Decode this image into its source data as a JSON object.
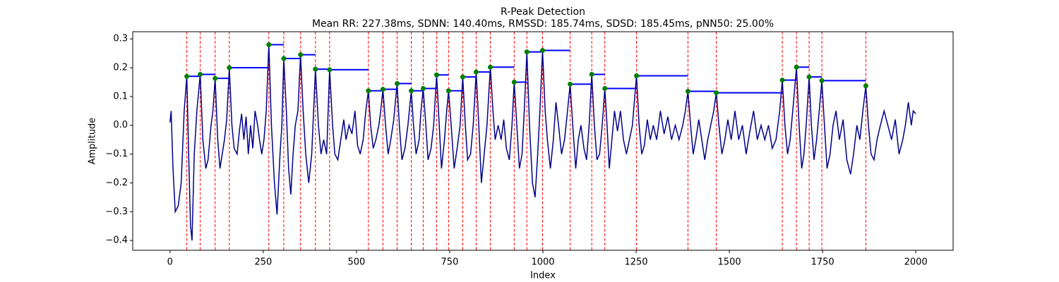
{
  "chart_data": {
    "type": "line",
    "title": "R-Peak Detection",
    "subtitle": "Mean RR: 227.38ms, SDNN: 140.40ms, RMSSD: 185.74ms, SDSD: 185.45ms, pNN50: 25.00%",
    "x_label": "Index",
    "y_label": "Amplitude",
    "xlim": [
      -100,
      2100
    ],
    "ylim": [
      -0.434,
      0.325
    ],
    "xticks": [
      0,
      250,
      500,
      750,
      1000,
      1250,
      1500,
      1750,
      2000
    ],
    "yticks": [
      {
        "value": -0.4,
        "label": "−0.4"
      },
      {
        "value": -0.3,
        "label": "−0.3"
      },
      {
        "value": -0.2,
        "label": "−0.2"
      },
      {
        "value": -0.1,
        "label": "−0.1"
      },
      {
        "value": 0,
        "label": "0.0"
      },
      0.1,
      0.2,
      0.3
    ],
    "color": "#00008b",
    "x": [
      0,
      3,
      8,
      14,
      22,
      30,
      38,
      45,
      50,
      55,
      59,
      65,
      72,
      81,
      88,
      96,
      102,
      110,
      115,
      121,
      128,
      134,
      140,
      146,
      152,
      159,
      166,
      172,
      180,
      186,
      192,
      198,
      204,
      210,
      216,
      222,
      228,
      235,
      240,
      246,
      252,
      258,
      265,
      272,
      280,
      287,
      295,
      300,
      305,
      312,
      318,
      324,
      330,
      336,
      343,
      350,
      357,
      364,
      372,
      380,
      390,
      398,
      405,
      412,
      420,
      428,
      436,
      442,
      450,
      458,
      466,
      472,
      480,
      488,
      496,
      503,
      510,
      518,
      525,
      532,
      538,
      545,
      552,
      560,
      565,
      571,
      578,
      585,
      592,
      600,
      609,
      615,
      622,
      630,
      638,
      647,
      653,
      660,
      668,
      673,
      679,
      686,
      692,
      700,
      707,
      715,
      722,
      728,
      736,
      742,
      747,
      754,
      762,
      770,
      778,
      785,
      792,
      798,
      806,
      813,
      821,
      828,
      835,
      841,
      850,
      859,
      866,
      872,
      880,
      888,
      895,
      902,
      910,
      917,
      923,
      930,
      937,
      944,
      950,
      957,
      964,
      972,
      979,
      986,
      992,
      999,
      1006,
      1012,
      1020,
      1028,
      1035,
      1042,
      1050,
      1058,
      1066,
      1073,
      1080,
      1088,
      1095,
      1102,
      1110,
      1117,
      1124,
      1131,
      1138,
      1145,
      1152,
      1159,
      1166,
      1172,
      1178,
      1185,
      1192,
      1200,
      1208,
      1216,
      1224,
      1232,
      1240,
      1251,
      1258,
      1265,
      1272,
      1280,
      1288,
      1296,
      1305,
      1315,
      1325,
      1335,
      1345,
      1355,
      1365,
      1375,
      1382,
      1389,
      1396,
      1403,
      1410,
      1418,
      1426,
      1434,
      1442,
      1450,
      1458,
      1465,
      1472,
      1480,
      1488,
      1496,
      1505,
      1515,
      1525,
      1535,
      1545,
      1555,
      1565,
      1575,
      1585,
      1595,
      1605,
      1615,
      1625,
      1635,
      1642,
      1649,
      1656,
      1663,
      1670,
      1680,
      1687,
      1694,
      1700,
      1706,
      1714,
      1720,
      1727,
      1734,
      1741,
      1748,
      1755,
      1762,
      1770,
      1778,
      1786,
      1795,
      1805,
      1815,
      1825,
      1833,
      1842,
      1850,
      1858,
      1866,
      1873,
      1880,
      1888,
      1896,
      1905,
      1915,
      1925,
      1935,
      1945,
      1955,
      1965,
      1972,
      1980,
      1988,
      1993,
      2000
    ],
    "values": [
      0.01,
      0.05,
      -0.15,
      -0.3,
      -0.28,
      -0.2,
      0.05,
      0.17,
      -0.1,
      -0.35,
      -0.4,
      -0.1,
      0.05,
      0.177,
      -0.05,
      -0.15,
      -0.12,
      0.0,
      0.05,
      0.163,
      -0.05,
      -0.15,
      -0.1,
      -0.05,
      0.02,
      0.2,
      0.0,
      -0.08,
      -0.1,
      -0.02,
      0.04,
      -0.05,
      0.03,
      -0.1,
      0.0,
      -0.08,
      0.05,
      0.0,
      -0.05,
      -0.1,
      -0.05,
      0.05,
      0.28,
      0.0,
      -0.2,
      -0.31,
      -0.1,
      0.0,
      0.232,
      0.05,
      -0.15,
      -0.24,
      -0.1,
      0.0,
      0.05,
      0.245,
      0.05,
      -0.1,
      -0.2,
      -0.1,
      0.195,
      0.0,
      -0.1,
      -0.05,
      -0.1,
      0.193,
      0.0,
      -0.1,
      -0.12,
      -0.05,
      0.02,
      -0.05,
      0.0,
      -0.03,
      0.05,
      -0.07,
      -0.1,
      -0.05,
      0.05,
      0.12,
      0.0,
      -0.08,
      -0.05,
      0.0,
      0.05,
      0.125,
      0.0,
      -0.1,
      -0.05,
      0.02,
      0.145,
      0.0,
      -0.12,
      -0.08,
      0.0,
      0.12,
      0.0,
      -0.1,
      -0.05,
      0.05,
      0.128,
      0.0,
      -0.12,
      -0.08,
      0.0,
      0.175,
      0.0,
      -0.15,
      -0.05,
      0.05,
      0.12,
      0.0,
      -0.15,
      -0.08,
      0.0,
      0.168,
      0.0,
      -0.12,
      -0.1,
      0.0,
      0.185,
      0.0,
      -0.2,
      -0.12,
      0.0,
      0.202,
      0.05,
      -0.05,
      0.0,
      -0.05,
      0.02,
      -0.08,
      -0.12,
      0.0,
      0.15,
      0.0,
      -0.15,
      -0.1,
      0.05,
      0.255,
      0.0,
      -0.2,
      -0.25,
      -0.1,
      0.05,
      0.26,
      0.05,
      -0.05,
      -0.15,
      -0.05,
      0.08,
      0.0,
      -0.1,
      -0.05,
      0.05,
      0.143,
      0.0,
      -0.15,
      -0.05,
      0.0,
      -0.08,
      -0.12,
      0.0,
      0.177,
      0.0,
      -0.12,
      -0.1,
      0.0,
      0.128,
      0.0,
      -0.15,
      -0.05,
      0.05,
      -0.02,
      0.05,
      -0.05,
      -0.1,
      -0.05,
      0.0,
      0.172,
      0.0,
      -0.1,
      -0.07,
      0.02,
      -0.05,
      0.0,
      -0.05,
      0.05,
      -0.03,
      0.03,
      -0.05,
      0.0,
      -0.05,
      0.0,
      0.05,
      0.118,
      0.0,
      -0.1,
      -0.05,
      0.02,
      -0.05,
      -0.12,
      -0.05,
      0.0,
      0.05,
      0.113,
      0.0,
      -0.1,
      -0.05,
      0.02,
      -0.05,
      0.05,
      -0.05,
      0.0,
      -0.1,
      -0.02,
      0.05,
      -0.05,
      0.0,
      -0.05,
      0.0,
      -0.08,
      -0.05,
      0.05,
      0.157,
      0.0,
      -0.1,
      -0.05,
      0.05,
      0.202,
      0.0,
      -0.15,
      -0.1,
      0.0,
      0.168,
      0.0,
      -0.12,
      -0.05,
      0.05,
      0.155,
      0.0,
      -0.15,
      -0.1,
      0.0,
      0.05,
      -0.05,
      0.02,
      -0.12,
      -0.17,
      -0.1,
      0.0,
      -0.05,
      0.05,
      0.137,
      0.0,
      -0.1,
      -0.12,
      -0.05,
      0.0,
      0.05,
      0.0,
      -0.05,
      0.02,
      -0.1,
      -0.05,
      0.0,
      0.08,
      0.0,
      0.05,
      0.04
    ],
    "peaks": {
      "marker_color": "#008000",
      "vline_color": "#ff0000",
      "interval_color": "#0000ff",
      "x": [
        45,
        81,
        121,
        159,
        265,
        305,
        350,
        390,
        428,
        532,
        571,
        609,
        647,
        679,
        715,
        747,
        785,
        821,
        859,
        923,
        957,
        999,
        1073,
        1131,
        1166,
        1251,
        1389,
        1465,
        1642,
        1680,
        1714,
        1748,
        1866
      ],
      "values": [
        0.17,
        0.177,
        0.163,
        0.2,
        0.28,
        0.232,
        0.245,
        0.195,
        0.193,
        0.12,
        0.125,
        0.145,
        0.12,
        0.128,
        0.175,
        0.12,
        0.168,
        0.185,
        0.202,
        0.15,
        0.255,
        0.26,
        0.143,
        0.177,
        0.128,
        0.172,
        0.118,
        0.113,
        0.157,
        0.202,
        0.168,
        0.155,
        0.137
      ]
    }
  }
}
